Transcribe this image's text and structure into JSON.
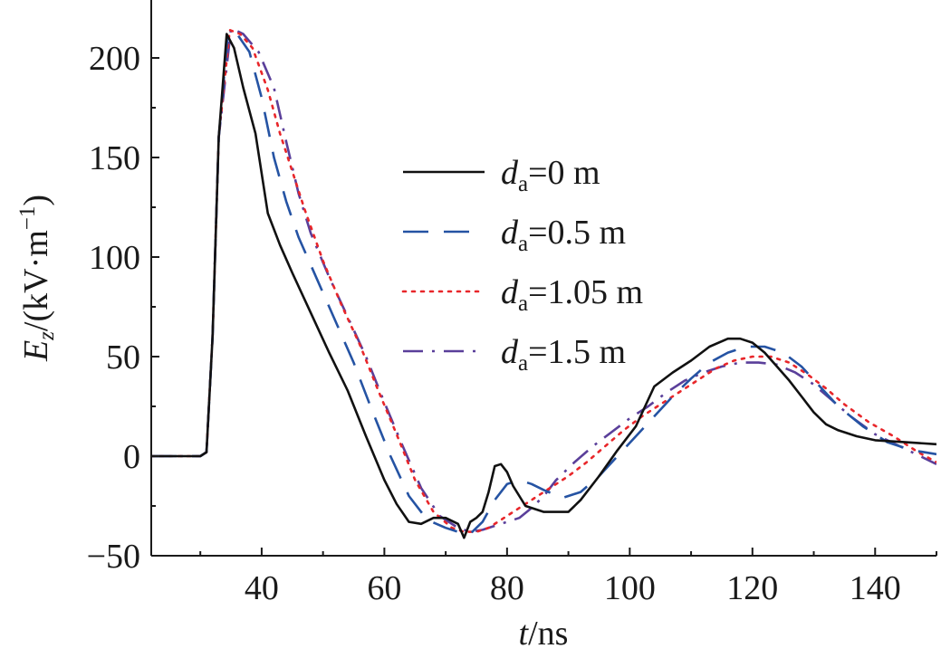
{
  "chart_data": {
    "type": "line",
    "xlabel": "t/ns",
    "ylabel": "E_z/(kV·m⁻¹)",
    "xlim": [
      22,
      150
    ],
    "ylim": [
      -50,
      220
    ],
    "xticks": [
      40,
      60,
      80,
      100,
      120,
      140
    ],
    "yticks": [
      -50,
      0,
      50,
      100,
      150,
      200
    ],
    "grid": false,
    "legend_position": "center-right",
    "series": [
      {
        "name": "d_a=0 m",
        "legend_sub": "a",
        "legend_main": "=0 m",
        "color": "#111111",
        "style": "solid",
        "x": [
          22,
          30,
          31,
          32,
          33,
          34.3,
          35.5,
          37,
          39,
          41,
          43,
          45,
          48,
          51,
          54,
          57,
          60,
          62,
          64,
          66,
          68,
          70,
          72,
          73,
          74,
          75,
          76,
          77,
          78,
          79,
          80,
          81,
          83,
          86,
          88,
          90,
          92,
          95,
          98,
          101,
          104,
          107,
          110,
          113,
          116,
          118,
          120,
          122,
          124,
          126,
          128,
          130,
          132,
          134,
          137,
          140,
          145,
          150
        ],
        "y": [
          0,
          0,
          2,
          60,
          160,
          212,
          205,
          185,
          162,
          122,
          106,
          92,
          72,
          52,
          33,
          10,
          -12,
          -24,
          -33,
          -34,
          -31,
          -31,
          -34,
          -41,
          -33,
          -31,
          -28,
          -18,
          -5,
          -4,
          -8,
          -15,
          -25,
          -28,
          -28,
          -28,
          -22,
          -10,
          3,
          15,
          35,
          42,
          48,
          55,
          59,
          59,
          57,
          52,
          45,
          38,
          30,
          22,
          16,
          13,
          10,
          8,
          7,
          6
        ]
      },
      {
        "name": "d_a=0.5 m",
        "legend_sub": "a",
        "legend_main": "=0.5 m",
        "color": "#2553a3",
        "style": "dashed",
        "x": [
          22,
          30,
          31,
          32,
          33,
          34.5,
          36,
          38,
          40,
          42,
          44,
          46,
          49,
          52,
          55,
          58,
          61,
          64,
          67,
          70,
          72,
          74,
          76,
          78,
          80,
          82,
          84,
          86,
          89,
          92,
          95,
          98,
          101,
          104,
          107,
          110,
          113,
          116,
          119,
          122,
          125,
          128,
          131,
          134,
          138,
          142,
          146,
          150
        ],
        "y": [
          0,
          0,
          2,
          60,
          160,
          213,
          212,
          203,
          180,
          150,
          128,
          110,
          89,
          68,
          47,
          23,
          0,
          -20,
          -32,
          -36,
          -38,
          -39,
          -33,
          -22,
          -14,
          -12,
          -14,
          -17,
          -21,
          -18,
          -10,
          0,
          10,
          20,
          30,
          39,
          47,
          52,
          55,
          55,
          52,
          45,
          35,
          25,
          15,
          7,
          3,
          1
        ]
      },
      {
        "name": "d_a=1.05 m",
        "legend_sub": "a",
        "legend_main": "=1.05 m",
        "color": "#e8262a",
        "style": "dotted",
        "x": [
          22,
          30,
          31,
          32,
          33,
          34.8,
          36.5,
          38.5,
          41,
          43,
          45,
          47,
          50,
          53,
          56,
          59,
          62,
          65,
          68,
          71,
          73,
          75,
          77,
          79,
          81,
          83,
          85,
          87,
          90,
          93,
          96,
          99,
          102,
          105,
          108,
          111,
          114,
          117,
          120,
          123,
          126,
          129,
          132,
          135,
          139,
          143,
          147,
          150
        ],
        "y": [
          0,
          0,
          2,
          60,
          160,
          214,
          212,
          205,
          184,
          162,
          143,
          124,
          98,
          76,
          56,
          33,
          11,
          -12,
          -28,
          -36,
          -38,
          -38,
          -36,
          -32,
          -28,
          -24,
          -20,
          -16,
          -10,
          -3,
          5,
          13,
          20,
          26,
          32,
          38,
          44,
          48,
          50,
          50,
          47,
          41,
          34,
          26,
          17,
          10,
          2,
          -3
        ]
      },
      {
        "name": "d_a=1.5 m",
        "legend_sub": "a",
        "legend_main": "=1.5 m",
        "color": "#5a3f9a",
        "style": "dashdot",
        "x": [
          22,
          30,
          31,
          32,
          33,
          35,
          37,
          39.5,
          42,
          44,
          46,
          48,
          51,
          54,
          57,
          60,
          63,
          66,
          69,
          72,
          74,
          76,
          78,
          80,
          82,
          84,
          86,
          88,
          91,
          94,
          97,
          100,
          103,
          106,
          109,
          112,
          115,
          118,
          121,
          124,
          127,
          130,
          133,
          136,
          140,
          144,
          148,
          150
        ],
        "y": [
          0,
          0,
          2,
          60,
          160,
          215,
          212,
          203,
          185,
          158,
          132,
          112,
          90,
          70,
          50,
          27,
          5,
          -16,
          -30,
          -36,
          -38,
          -37,
          -35,
          -33,
          -31,
          -26,
          -20,
          -12,
          -3,
          5,
          12,
          19,
          25,
          32,
          38,
          42,
          45,
          47,
          47,
          46,
          42,
          36,
          28,
          20,
          11,
          5,
          -1,
          -4
        ]
      }
    ]
  }
}
